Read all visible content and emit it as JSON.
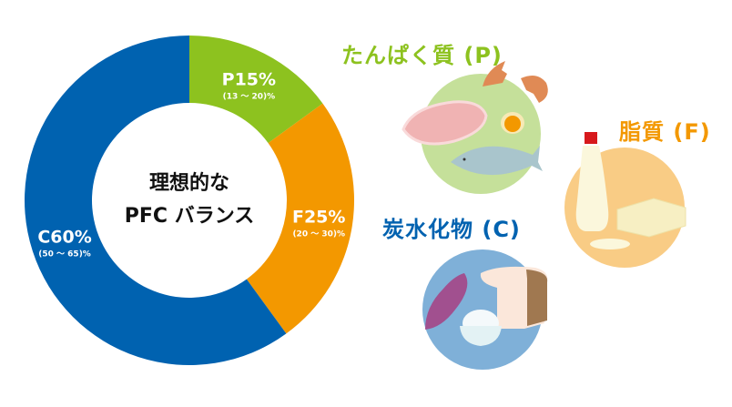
{
  "chart_data": {
    "type": "pie",
    "donut": true,
    "center_label": [
      "理想的な",
      "PFC バランス"
    ],
    "slices": [
      {
        "key": "P",
        "label": "P15%",
        "value": 15,
        "range": "(13 ～ 20)%",
        "color": "#8dc21f"
      },
      {
        "key": "F",
        "label": "F25%",
        "value": 25,
        "range": "(20 ～ 30)%",
        "color": "#f39800"
      },
      {
        "key": "C",
        "label": "C60%",
        "value": 60,
        "range": "(50 ～ 65)%",
        "color": "#0062b0"
      }
    ]
  },
  "categories": {
    "protein": {
      "title": "たんぱく質 (P)",
      "color": "#8dc21f",
      "icon": "meat-egg-fish-icon"
    },
    "fat": {
      "title": "脂質 (F)",
      "color": "#f39800",
      "icon": "oil-butter-icon"
    },
    "carb": {
      "title": "炭水化物 (C)",
      "color": "#0062b0",
      "icon": "potato-bread-rice-icon"
    }
  }
}
